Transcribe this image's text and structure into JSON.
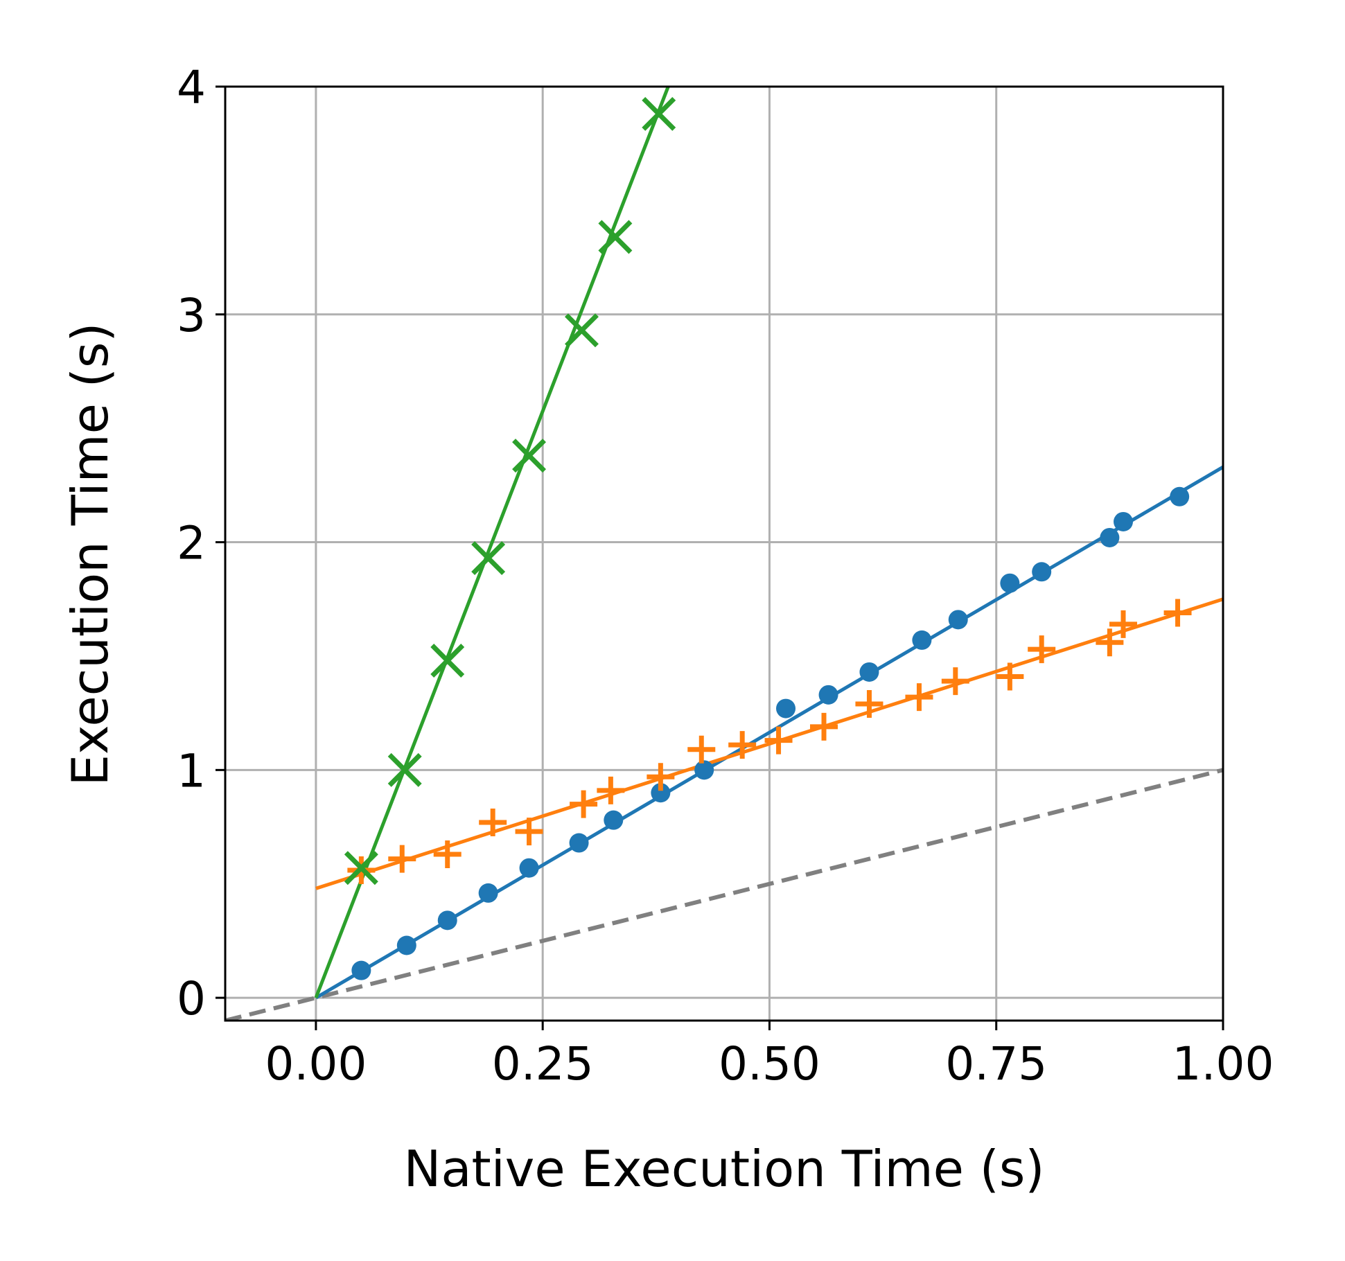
{
  "chart_data": {
    "type": "scatter",
    "title": "",
    "xlabel": "Native Execution Time (s)",
    "ylabel": "Execution Time (s)",
    "xlim": [
      -0.1,
      1.0
    ],
    "ylim": [
      -0.1,
      4.0
    ],
    "xticks": [
      0.0,
      0.25,
      0.5,
      0.75,
      1.0
    ],
    "xtick_labels": [
      "0.00",
      "0.25",
      "0.50",
      "0.75",
      "1.00"
    ],
    "yticks": [
      0,
      1,
      2,
      3,
      4
    ],
    "ytick_labels": [
      "0",
      "1",
      "2",
      "3",
      "4"
    ],
    "grid": true,
    "legend": "none",
    "reference_line": {
      "slope": 1,
      "intercept": 0,
      "style": "dashed",
      "color": "#808080"
    },
    "series": [
      {
        "marker": "dot",
        "color": "#1f77b4",
        "fit": {
          "slope": 2.33,
          "intercept": 0.0
        },
        "x": [
          0.05,
          0.1,
          0.145,
          0.19,
          0.235,
          0.29,
          0.328,
          0.38,
          0.428,
          0.518,
          0.565,
          0.61,
          0.668,
          0.708,
          0.765,
          0.8,
          0.875,
          0.89,
          0.952
        ],
        "y": [
          0.12,
          0.23,
          0.34,
          0.46,
          0.57,
          0.68,
          0.78,
          0.9,
          1.0,
          1.27,
          1.33,
          1.43,
          1.57,
          1.66,
          1.82,
          1.87,
          2.02,
          2.09,
          2.2
        ]
      },
      {
        "marker": "plus",
        "color": "#ff7f0e",
        "fit": {
          "slope": 1.27,
          "intercept": 0.48
        },
        "x": [
          0.05,
          0.095,
          0.145,
          0.195,
          0.235,
          0.295,
          0.325,
          0.38,
          0.425,
          0.47,
          0.51,
          0.56,
          0.61,
          0.665,
          0.705,
          0.765,
          0.8,
          0.875,
          0.89,
          0.95
        ],
        "y": [
          0.56,
          0.61,
          0.63,
          0.77,
          0.73,
          0.85,
          0.91,
          0.97,
          1.09,
          1.11,
          1.13,
          1.19,
          1.29,
          1.32,
          1.39,
          1.41,
          1.53,
          1.56,
          1.64,
          1.69
        ]
      },
      {
        "marker": "x",
        "color": "#2ca02c",
        "fit": {
          "slope": 10.3,
          "intercept": 0.0
        },
        "x": [
          0.05,
          0.098,
          0.145,
          0.19,
          0.235,
          0.293,
          0.33,
          0.378
        ],
        "y": [
          0.57,
          1.0,
          1.48,
          1.93,
          2.38,
          2.93,
          3.34,
          3.88
        ]
      }
    ]
  }
}
